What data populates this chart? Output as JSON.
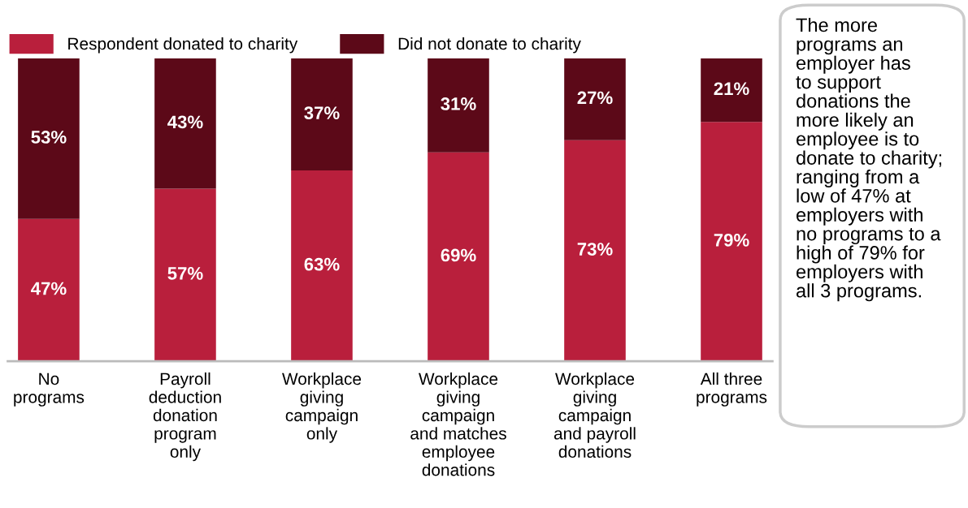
{
  "chart_data": {
    "type": "bar",
    "stacked": true,
    "legend": "top left",
    "tick_labels": "x",
    "grid": false,
    "categories": [
      "No\nprograms",
      "Payroll\ndeduction\ndonation\nprogram\nonly",
      "Workplace\ngiving\ncampaign\nonly",
      "Workplace\ngiving\ncampaign\nand matches\nemployee\ndonations",
      "Workplace\ngiving\ncampaign\nand payroll\ndonations",
      "All three\nprograms"
    ],
    "series": [
      {
        "name": "Respondent donated to charity",
        "color": "#b91f3c",
        "values": [
          47,
          57,
          63,
          69,
          73,
          79
        ],
        "value_labels": [
          "47%",
          "57%",
          "63%",
          "69%",
          "73%",
          "79%"
        ]
      },
      {
        "name": "Did not donate to charity",
        "color": "#5c0918",
        "values": [
          53,
          43,
          37,
          31,
          27,
          21
        ],
        "value_labels": [
          "53%",
          "43%",
          "37%",
          "31%",
          "27%",
          "21%"
        ]
      }
    ],
    "annotations": [
      "The more\nprograms an\nemployer has\nto support\ndonations the\nmore likely an\nemployee is to\ndonate to charity;\nranging from a\nlow of 47% at\nemployers with\nno programs to a\nhigh of 79% for\nemployers with\nall 3 programs."
    ]
  }
}
